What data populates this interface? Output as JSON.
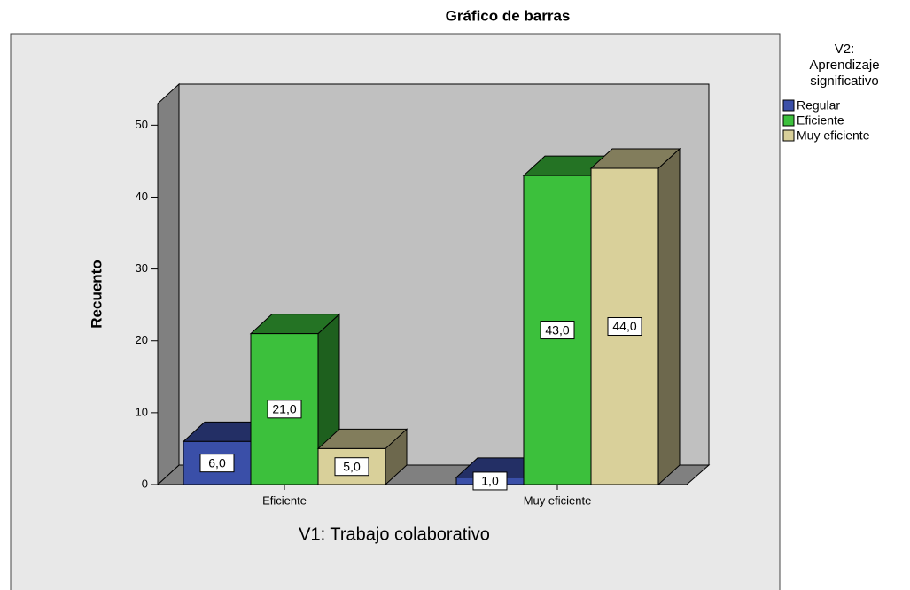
{
  "chart_data": {
    "type": "bar3d",
    "title": "Gráfico de barras",
    "x_label": "V1: Trabajo colaborativo",
    "y_label": "Recuento",
    "legend_title": [
      "V2:",
      "Aprendizaje",
      "significativo"
    ],
    "categories": [
      "Eficiente",
      "Muy eficiente"
    ],
    "series": [
      {
        "name": "Regular",
        "color": "#3a4fa8",
        "values": [
          6,
          1
        ],
        "value_labels": [
          "6,0",
          "1,0"
        ]
      },
      {
        "name": "Eficiente",
        "color": "#3cc03c",
        "values": [
          21,
          43
        ],
        "value_labels": [
          "21,0",
          "43,0"
        ]
      },
      {
        "name": "Muy eficiente",
        "color": "#d9d09a",
        "values": [
          5,
          44
        ],
        "value_labels": [
          "5,0",
          "44,0"
        ]
      }
    ],
    "ylim": [
      0,
      53
    ],
    "yticks": [
      0,
      10,
      20,
      30,
      40,
      50
    ],
    "legend": "right"
  }
}
